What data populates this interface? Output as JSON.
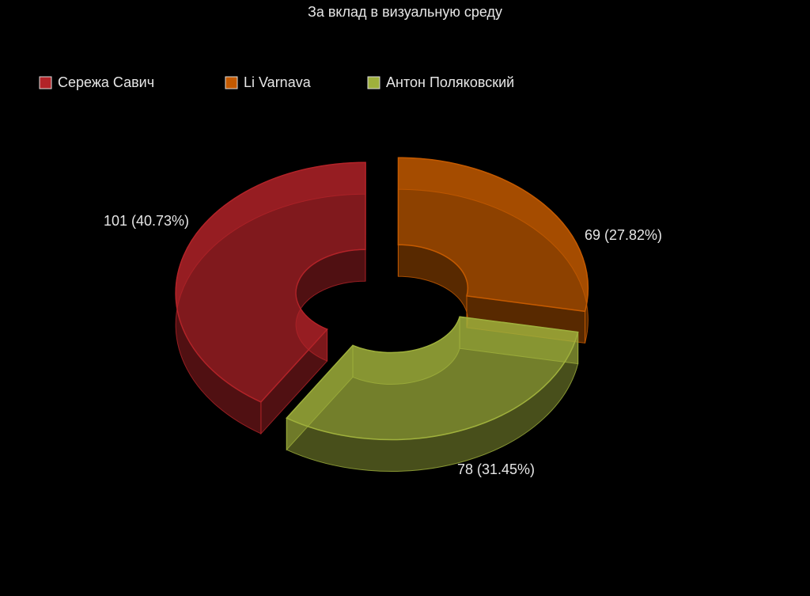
{
  "chart_data": {
    "type": "pie",
    "title": "За вклад в визуальную среду",
    "categories": [
      "Сережа Савич",
      "Li Varnava",
      "Антон Поляковский"
    ],
    "values": [
      101,
      69,
      78
    ],
    "value_labels": [
      "101 (40.73%)",
      "69 (27.82%)",
      "78 (31.45%)"
    ],
    "colors": [
      "#b22328",
      "#c45a00",
      "#9fb03c"
    ],
    "legend": "top-left"
  }
}
